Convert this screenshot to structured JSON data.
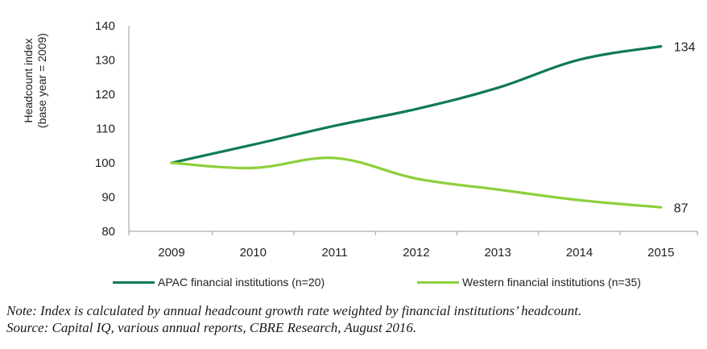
{
  "chart_data": {
    "type": "line",
    "title": "",
    "xlabel": "",
    "ylabel": "Headcount index",
    "ylabel_sub": "(base year = 2009)",
    "categories": [
      "2009",
      "2010",
      "2011",
      "2012",
      "2013",
      "2014",
      "2015"
    ],
    "ylim": [
      80,
      140
    ],
    "yticks": [
      80,
      90,
      100,
      110,
      120,
      130,
      140
    ],
    "grid": false,
    "legend_position": "bottom",
    "series": [
      {
        "name": "APAC financial institutions (n=20)",
        "color": "#0f7a55",
        "values": [
          100,
          105.3,
          110.8,
          115.7,
          121.9,
          130.1,
          134
        ],
        "end_label": "134"
      },
      {
        "name": "Western financial institutions (n=35)",
        "color": "#8ccf3a",
        "values": [
          100,
          98.5,
          101.4,
          95.4,
          92.2,
          89.1,
          87
        ],
        "end_label": "87"
      }
    ]
  },
  "notes": {
    "note": "Note: Index is calculated by annual headcount growth rate weighted by financial institutions’ headcount.",
    "source": "Source: Capital IQ, various annual reports, CBRE Research, August 2016."
  }
}
